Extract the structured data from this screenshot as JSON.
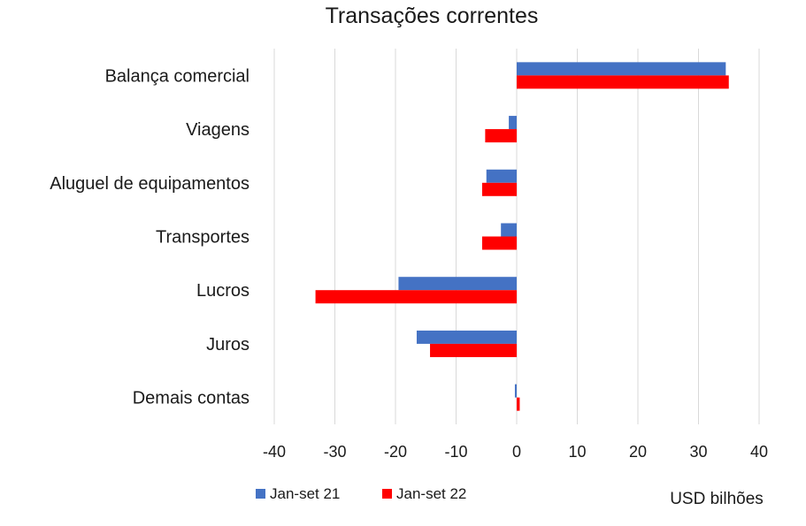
{
  "chart_data": {
    "type": "bar",
    "orientation": "horizontal",
    "title": "Transações correntes",
    "categories": [
      "Balança comercial",
      "Viagens",
      "Aluguel de equipamentos",
      "Transportes",
      "Lucros",
      "Juros",
      "Demais contas"
    ],
    "series": [
      {
        "name": "Jan-set 21",
        "color": "#4472c4",
        "values": [
          34.5,
          -1.3,
          -5.0,
          -2.6,
          -19.5,
          -16.5,
          -0.3
        ]
      },
      {
        "name": "Jan-set 22",
        "color": "#ff0000",
        "values": [
          35.0,
          -5.2,
          -5.7,
          -5.7,
          -33.2,
          -14.3,
          0.5
        ]
      }
    ],
    "xlim": [
      -40,
      40
    ],
    "xticks": [
      "-40",
      "-30",
      "-20",
      "-10",
      "0",
      "10",
      "20",
      "30",
      "40"
    ],
    "xlabel": "USD bilhões",
    "grid": true,
    "legend_position": "bottom-left"
  }
}
